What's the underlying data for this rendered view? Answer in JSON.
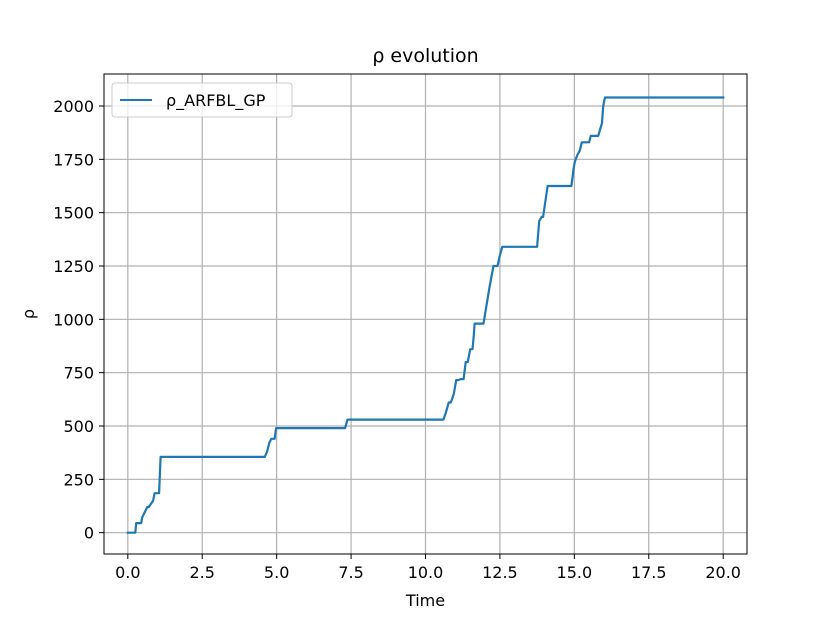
{
  "chart_data": {
    "type": "line",
    "title": "ρ evolution",
    "xlabel": "Time",
    "ylabel": "ρ",
    "xlim": [
      -0.8,
      20.8
    ],
    "ylim": [
      -100,
      2150
    ],
    "xticks": [
      0.0,
      2.5,
      5.0,
      7.5,
      10.0,
      12.5,
      15.0,
      17.5,
      20.0
    ],
    "xtick_labels": [
      "0.0",
      "2.5",
      "5.0",
      "7.5",
      "10.0",
      "12.5",
      "15.0",
      "17.5",
      "20.0"
    ],
    "yticks": [
      0,
      250,
      500,
      750,
      1000,
      1250,
      1500,
      1750,
      2000
    ],
    "ytick_labels": [
      "0",
      "250",
      "500",
      "750",
      "1000",
      "1250",
      "1500",
      "1750",
      "2000"
    ],
    "grid": true,
    "legend_position": "top-left",
    "series": [
      {
        "name": "ρ_ARFBL_GP",
        "color": "#1f77b4",
        "x": [
          0,
          0.25,
          0.28,
          0.45,
          0.48,
          0.65,
          0.7,
          0.85,
          0.9,
          1.05,
          1.1,
          4.6,
          4.68,
          4.75,
          4.82,
          4.93,
          4.98,
          7.3,
          7.38,
          10.6,
          10.68,
          10.78,
          10.85,
          10.95,
          11.03,
          11.1,
          11.18,
          11.28,
          11.35,
          11.42,
          11.5,
          11.58,
          11.62,
          11.65,
          11.9,
          11.95,
          12.15,
          12.28,
          12.42,
          12.5,
          12.58,
          13.75,
          13.82,
          13.9,
          13.95,
          14.1,
          14.18,
          14.9,
          14.98,
          15.02,
          15.1,
          15.18,
          15.25,
          15.5,
          15.55,
          15.75,
          15.8,
          15.93,
          15.97,
          16.03,
          16.1,
          20.0
        ],
        "y": [
          0,
          0,
          45,
          45,
          70,
          120,
          120,
          150,
          185,
          185,
          355,
          355,
          380,
          420,
          440,
          440,
          490,
          490,
          530,
          530,
          560,
          610,
          610,
          650,
          715,
          715,
          720,
          720,
          800,
          800,
          860,
          860,
          920,
          980,
          980,
          980,
          1150,
          1250,
          1250,
          1300,
          1340,
          1340,
          1460,
          1480,
          1480,
          1625,
          1625,
          1625,
          1710,
          1740,
          1770,
          1790,
          1830,
          1830,
          1860,
          1860,
          1860,
          1920,
          2000,
          2040,
          2040,
          2040
        ]
      }
    ]
  }
}
